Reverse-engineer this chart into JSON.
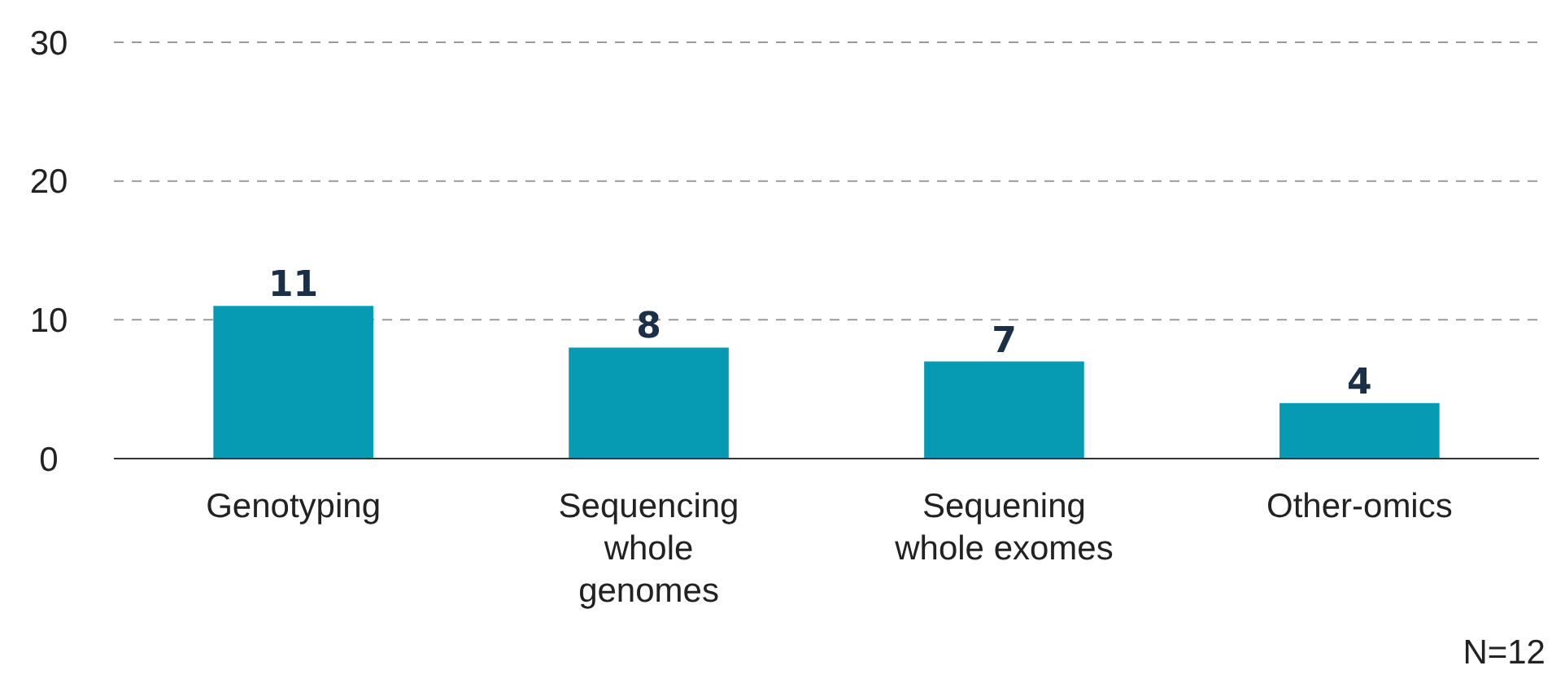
{
  "chart_data": {
    "type": "bar",
    "categories": [
      "Genotyping",
      "Sequencing\nwhole\ngenomes",
      "Sequening\nwhole exomes",
      "Other-omics"
    ],
    "values": [
      11,
      8,
      7,
      4
    ],
    "color": "#069bb3",
    "ylim": [
      0,
      30
    ],
    "yticks": [
      0,
      10,
      20,
      30
    ],
    "grid": "y",
    "data_labels": true,
    "annotations": [
      "N=12"
    ]
  }
}
